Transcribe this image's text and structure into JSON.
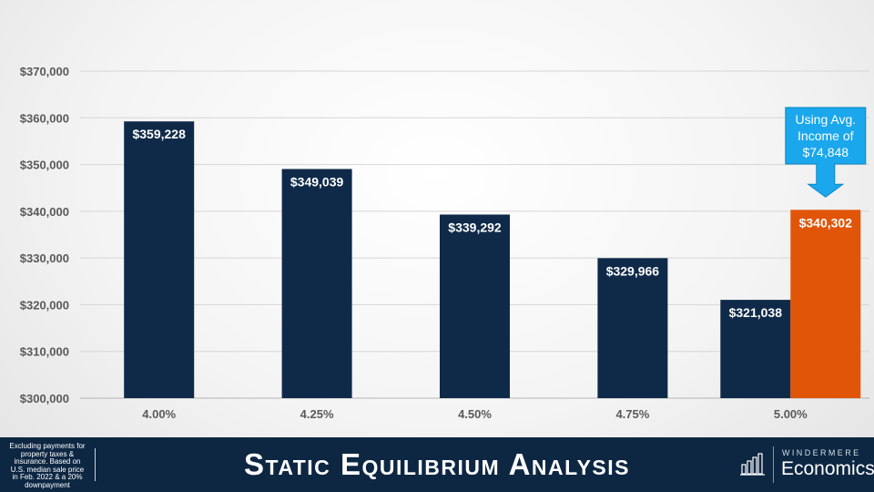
{
  "chart_data": {
    "type": "bar",
    "categories": [
      "4.00%",
      "4.25%",
      "4.50%",
      "4.75%",
      "5.00%"
    ],
    "series": [
      {
        "values": [
          359228,
          349039,
          339292,
          329966,
          321038
        ],
        "color": "#0f2a49"
      },
      {
        "values": [
          null,
          null,
          null,
          null,
          340302
        ],
        "color": "#e05508"
      }
    ],
    "data_labels": [
      [
        "$359,228",
        "$349,039",
        "$339,292",
        "$329,966",
        "$321,038"
      ],
      [
        null,
        null,
        null,
        null,
        "$340,302"
      ]
    ],
    "ylim": [
      300000,
      370000
    ],
    "y_ticks": [
      300000,
      310000,
      320000,
      330000,
      340000,
      350000,
      360000,
      370000
    ],
    "y_tick_labels": [
      "$300,000",
      "$310,000",
      "$320,000",
      "$330,000",
      "$340,000",
      "$350,000",
      "$360,000",
      "$370,000"
    ],
    "grid": true,
    "annotation": {
      "lines": [
        "Using Avg.",
        "Income of",
        "$74,848"
      ],
      "color": "#1aa7ec"
    }
  },
  "footer": {
    "title": "Static Equilibrium Analysis",
    "note": "Excluding payments for property taxes & insurance. Based on U.S. median sale price in Feb. 2022 & a 20% downpayment",
    "logo_top": "WINDERMERE",
    "logo_bottom": "Economics",
    "icon": "bar-chart-icon"
  }
}
